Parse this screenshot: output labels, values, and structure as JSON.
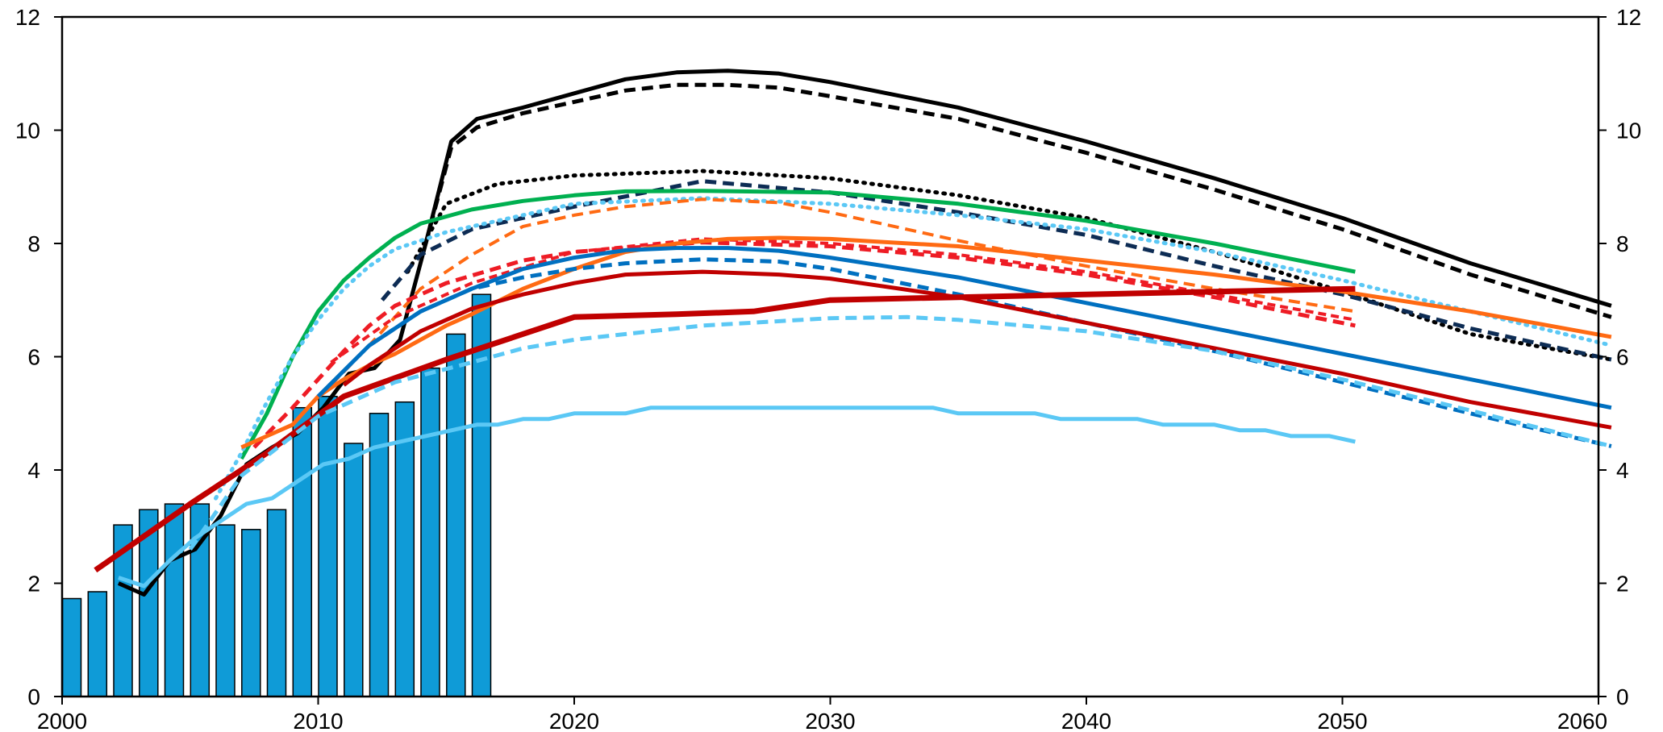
{
  "chart_data": {
    "type": "bar",
    "title": "",
    "xlabel": "",
    "ylabel": "",
    "xlim": [
      2000,
      2060
    ],
    "ylim": [
      0,
      12
    ],
    "grid": false,
    "legend": "none",
    "x_ticks": [
      "2000",
      "2010",
      "2020",
      "2030",
      "2040",
      "2050",
      "2060"
    ],
    "y_ticks_left": [
      "0",
      "2",
      "4",
      "6",
      "8",
      "10",
      "12"
    ],
    "y_ticks_right": [
      "0",
      "2",
      "4",
      "6",
      "8",
      "10",
      "12"
    ],
    "bars": {
      "color": "#0f9bd7",
      "years": [
        2000,
        2001,
        2002,
        2003,
        2004,
        2005,
        2006,
        2007,
        2008,
        2009,
        2010,
        2011,
        2012,
        2013,
        2014,
        2015,
        2016
      ],
      "values": [
        1.73,
        1.85,
        3.03,
        3.3,
        3.4,
        3.4,
        3.03,
        2.95,
        3.3,
        5.1,
        5.3,
        4.47,
        5.0,
        5.2,
        5.8,
        6.4,
        7.1
      ]
    },
    "series": [
      {
        "color": "#000000",
        "dash": "solid",
        "width": 5,
        "points": [
          [
            2002.2,
            2.0
          ],
          [
            2003.2,
            1.8
          ],
          [
            2004.2,
            2.4
          ],
          [
            2005.2,
            2.6
          ],
          [
            2006.2,
            3.2
          ],
          [
            2007.2,
            4.1
          ],
          [
            2008.2,
            4.4
          ],
          [
            2009.2,
            4.65
          ],
          [
            2010.2,
            5.1
          ],
          [
            2011.2,
            5.7
          ],
          [
            2012.2,
            5.8
          ],
          [
            2013.2,
            6.3
          ],
          [
            2014.2,
            8.0
          ],
          [
            2015.2,
            9.8
          ],
          [
            2016.2,
            10.2
          ],
          [
            2018,
            10.4
          ],
          [
            2020,
            10.65
          ],
          [
            2022,
            10.9
          ],
          [
            2024,
            11.02
          ],
          [
            2026,
            11.05
          ],
          [
            2028,
            11.0
          ],
          [
            2030,
            10.85
          ],
          [
            2035,
            10.4
          ],
          [
            2040,
            9.8
          ],
          [
            2045,
            9.15
          ],
          [
            2050,
            8.45
          ],
          [
            2055,
            7.65
          ],
          [
            2060.5,
            6.9
          ]
        ]
      },
      {
        "color": "#000000",
        "dash": "14,8",
        "width": 5,
        "points": [
          [
            2014.2,
            8.0
          ],
          [
            2015.2,
            9.7
          ],
          [
            2016.2,
            10.05
          ],
          [
            2018,
            10.3
          ],
          [
            2020,
            10.5
          ],
          [
            2022,
            10.7
          ],
          [
            2024,
            10.8
          ],
          [
            2026,
            10.8
          ],
          [
            2028,
            10.75
          ],
          [
            2030,
            10.6
          ],
          [
            2035,
            10.2
          ],
          [
            2040,
            9.6
          ],
          [
            2045,
            8.95
          ],
          [
            2050,
            8.25
          ],
          [
            2055,
            7.45
          ],
          [
            2060.5,
            6.7
          ]
        ]
      },
      {
        "color": "#000000",
        "dash": "2,8",
        "width": 5,
        "points": [
          [
            2013.5,
            7.5
          ],
          [
            2015,
            8.7
          ],
          [
            2017,
            9.05
          ],
          [
            2020,
            9.2
          ],
          [
            2025,
            9.28
          ],
          [
            2030,
            9.15
          ],
          [
            2035,
            8.85
          ],
          [
            2040,
            8.45
          ],
          [
            2045,
            7.85
          ],
          [
            2050,
            7.15
          ],
          [
            2055,
            6.4
          ],
          [
            2060.5,
            5.95
          ]
        ]
      },
      {
        "color": "#0d2c54",
        "dash": "14,8",
        "width": 5,
        "points": [
          [
            2012.5,
            7.0
          ],
          [
            2014,
            7.8
          ],
          [
            2016,
            8.25
          ],
          [
            2020,
            8.65
          ],
          [
            2025,
            9.1
          ],
          [
            2030,
            8.9
          ],
          [
            2035,
            8.55
          ],
          [
            2040,
            8.15
          ],
          [
            2045,
            7.6
          ],
          [
            2050,
            7.1
          ],
          [
            2055,
            6.5
          ],
          [
            2060.5,
            5.95
          ]
        ]
      },
      {
        "color": "#00b050",
        "dash": "solid",
        "width": 5,
        "points": [
          [
            2007,
            4.2
          ],
          [
            2008,
            5.0
          ],
          [
            2009,
            6.0
          ],
          [
            2010,
            6.8
          ],
          [
            2011,
            7.35
          ],
          [
            2012,
            7.75
          ],
          [
            2013,
            8.1
          ],
          [
            2014,
            8.35
          ],
          [
            2016,
            8.6
          ],
          [
            2018,
            8.75
          ],
          [
            2020,
            8.85
          ],
          [
            2022,
            8.92
          ],
          [
            2025,
            8.93
          ],
          [
            2030,
            8.9
          ],
          [
            2035,
            8.7
          ],
          [
            2040,
            8.4
          ],
          [
            2045,
            8.0
          ],
          [
            2050.5,
            7.5
          ]
        ]
      },
      {
        "color": "#5bc8f5",
        "dash": "2,8",
        "width": 5,
        "points": [
          [
            2006,
            3.5
          ],
          [
            2007,
            4.3
          ],
          [
            2008,
            5.2
          ],
          [
            2009,
            6.0
          ],
          [
            2010,
            6.65
          ],
          [
            2011,
            7.2
          ],
          [
            2012,
            7.6
          ],
          [
            2013,
            7.9
          ],
          [
            2015,
            8.2
          ],
          [
            2018,
            8.5
          ],
          [
            2020,
            8.7
          ],
          [
            2025,
            8.8
          ],
          [
            2030,
            8.7
          ],
          [
            2035,
            8.5
          ],
          [
            2040,
            8.25
          ],
          [
            2045,
            7.85
          ],
          [
            2050,
            7.35
          ],
          [
            2055,
            6.8
          ],
          [
            2060.5,
            6.2
          ]
        ]
      },
      {
        "color": "#ff6a13",
        "dash": "14,8",
        "width": 4,
        "points": [
          [
            2010.5,
            5.5
          ],
          [
            2012,
            6.2
          ],
          [
            2014,
            7.2
          ],
          [
            2016,
            7.8
          ],
          [
            2018,
            8.3
          ],
          [
            2020,
            8.5
          ],
          [
            2022,
            8.65
          ],
          [
            2025,
            8.78
          ],
          [
            2028,
            8.72
          ],
          [
            2030,
            8.55
          ],
          [
            2035,
            8.05
          ],
          [
            2040,
            7.6
          ],
          [
            2045,
            7.2
          ],
          [
            2050.5,
            6.8
          ]
        ]
      },
      {
        "color": "#ee1c25",
        "dash": "14,8",
        "width": 5,
        "points": [
          [
            2007.5,
            4.4
          ],
          [
            2009,
            5.1
          ],
          [
            2010,
            5.6
          ],
          [
            2011,
            6.1
          ],
          [
            2012,
            6.55
          ],
          [
            2013,
            6.9
          ],
          [
            2015,
            7.3
          ],
          [
            2018,
            7.7
          ],
          [
            2020,
            7.85
          ],
          [
            2025,
            8.02
          ],
          [
            2030,
            7.95
          ],
          [
            2035,
            7.75
          ],
          [
            2040,
            7.45
          ],
          [
            2045,
            7.05
          ],
          [
            2050.5,
            6.55
          ]
        ]
      },
      {
        "color": "#ee1c25",
        "dash": "10,6",
        "width": 4,
        "points": [
          [
            2010.5,
            5.9
          ],
          [
            2013,
            6.7
          ],
          [
            2016,
            7.3
          ],
          [
            2020,
            7.85
          ],
          [
            2025,
            8.08
          ],
          [
            2030,
            8.0
          ],
          [
            2035,
            7.8
          ],
          [
            2040,
            7.5
          ],
          [
            2045,
            7.1
          ],
          [
            2050.5,
            6.65
          ]
        ]
      },
      {
        "color": "#ff6a13",
        "dash": "solid",
        "width": 5,
        "points": [
          [
            2007,
            4.4
          ],
          [
            2008,
            4.6
          ],
          [
            2009,
            4.8
          ],
          [
            2010,
            5.3
          ],
          [
            2011,
            5.6
          ],
          [
            2012,
            5.85
          ],
          [
            2013,
            6.05
          ],
          [
            2014,
            6.3
          ],
          [
            2015,
            6.55
          ],
          [
            2016,
            6.75
          ],
          [
            2018,
            7.2
          ],
          [
            2020,
            7.55
          ],
          [
            2022,
            7.85
          ],
          [
            2024,
            8.0
          ],
          [
            2026,
            8.08
          ],
          [
            2028,
            8.1
          ],
          [
            2030,
            8.08
          ],
          [
            2035,
            7.95
          ],
          [
            2040,
            7.7
          ],
          [
            2045,
            7.45
          ],
          [
            2050,
            7.15
          ],
          [
            2055,
            6.8
          ],
          [
            2060.5,
            6.35
          ]
        ]
      },
      {
        "color": "#0070c0",
        "dash": "solid",
        "width": 5,
        "points": [
          [
            2010,
            5.3
          ],
          [
            2012,
            6.2
          ],
          [
            2014,
            6.8
          ],
          [
            2016,
            7.2
          ],
          [
            2018,
            7.55
          ],
          [
            2020,
            7.75
          ],
          [
            2022,
            7.88
          ],
          [
            2024,
            7.92
          ],
          [
            2026,
            7.92
          ],
          [
            2028,
            7.87
          ],
          [
            2030,
            7.75
          ],
          [
            2035,
            7.4
          ],
          [
            2040,
            6.95
          ],
          [
            2045,
            6.5
          ],
          [
            2050,
            6.05
          ],
          [
            2055,
            5.6
          ],
          [
            2060.5,
            5.1
          ]
        ]
      },
      {
        "color": "#0070c0",
        "dash": "14,8",
        "width": 5,
        "points": [
          [
            2012,
            6.2
          ],
          [
            2014,
            6.8
          ],
          [
            2016,
            7.2
          ],
          [
            2018,
            7.4
          ],
          [
            2020,
            7.55
          ],
          [
            2022,
            7.65
          ],
          [
            2025,
            7.72
          ],
          [
            2028,
            7.68
          ],
          [
            2030,
            7.55
          ],
          [
            2035,
            7.1
          ],
          [
            2040,
            6.6
          ],
          [
            2045,
            6.1
          ],
          [
            2050,
            5.55
          ],
          [
            2055,
            5.0
          ],
          [
            2060.5,
            4.42
          ]
        ]
      },
      {
        "color": "#c00000",
        "dash": "solid",
        "width": 5,
        "points": [
          [
            2011,
            5.5
          ],
          [
            2012,
            5.85
          ],
          [
            2013,
            6.15
          ],
          [
            2014,
            6.45
          ],
          [
            2015,
            6.65
          ],
          [
            2016,
            6.85
          ],
          [
            2018,
            7.1
          ],
          [
            2020,
            7.3
          ],
          [
            2022,
            7.45
          ],
          [
            2025,
            7.5
          ],
          [
            2028,
            7.45
          ],
          [
            2030,
            7.38
          ],
          [
            2035,
            7.05
          ],
          [
            2040,
            6.6
          ],
          [
            2045,
            6.15
          ],
          [
            2050,
            5.7
          ],
          [
            2055,
            5.2
          ],
          [
            2060.5,
            4.75
          ]
        ]
      },
      {
        "color": "#c00000",
        "dash": "solid",
        "width": 7,
        "points": [
          [
            2001.3,
            2.23
          ],
          [
            2005,
            3.4
          ],
          [
            2008,
            4.3
          ],
          [
            2011,
            5.3
          ],
          [
            2015,
            5.95
          ],
          [
            2020,
            6.7
          ],
          [
            2024,
            6.75
          ],
          [
            2027,
            6.8
          ],
          [
            2030,
            7.0
          ],
          [
            2035,
            7.05
          ],
          [
            2040,
            7.1
          ],
          [
            2045,
            7.15
          ],
          [
            2050.5,
            7.2
          ]
        ]
      },
      {
        "color": "#5bc8f5",
        "dash": "14,8",
        "width": 5,
        "points": [
          [
            2005,
            2.6
          ],
          [
            2007,
            3.9
          ],
          [
            2010,
            4.95
          ],
          [
            2013,
            5.55
          ],
          [
            2016,
            5.9
          ],
          [
            2018,
            6.15
          ],
          [
            2020,
            6.3
          ],
          [
            2025,
            6.55
          ],
          [
            2030,
            6.68
          ],
          [
            2033,
            6.7
          ],
          [
            2035,
            6.65
          ],
          [
            2040,
            6.45
          ],
          [
            2045,
            6.1
          ],
          [
            2050,
            5.6
          ],
          [
            2055,
            5.05
          ],
          [
            2060.5,
            4.42
          ]
        ]
      },
      {
        "color": "#5bc8f5",
        "dash": "solid",
        "width": 5,
        "points": [
          [
            2002.2,
            2.1
          ],
          [
            2003.2,
            1.95
          ],
          [
            2004.2,
            2.4
          ],
          [
            2005.2,
            2.8
          ],
          [
            2006.2,
            3.1
          ],
          [
            2007.2,
            3.4
          ],
          [
            2008.2,
            3.5
          ],
          [
            2009.2,
            3.8
          ],
          [
            2010.2,
            4.1
          ],
          [
            2011.2,
            4.2
          ],
          [
            2012.2,
            4.4
          ],
          [
            2013.2,
            4.5
          ],
          [
            2014.2,
            4.6
          ],
          [
            2015.2,
            4.7
          ],
          [
            2016.2,
            4.8
          ],
          [
            2017,
            4.8
          ],
          [
            2018,
            4.9
          ],
          [
            2019,
            4.9
          ],
          [
            2020,
            5.0
          ],
          [
            2022,
            5.0
          ],
          [
            2023,
            5.1
          ],
          [
            2034,
            5.1
          ],
          [
            2035,
            5.0
          ],
          [
            2038,
            5.0
          ],
          [
            2039,
            4.9
          ],
          [
            2042,
            4.9
          ],
          [
            2043,
            4.8
          ],
          [
            2045,
            4.8
          ],
          [
            2046,
            4.7
          ],
          [
            2047,
            4.7
          ],
          [
            2048,
            4.6
          ],
          [
            2049.5,
            4.6
          ],
          [
            2050.5,
            4.5
          ]
        ]
      }
    ]
  }
}
